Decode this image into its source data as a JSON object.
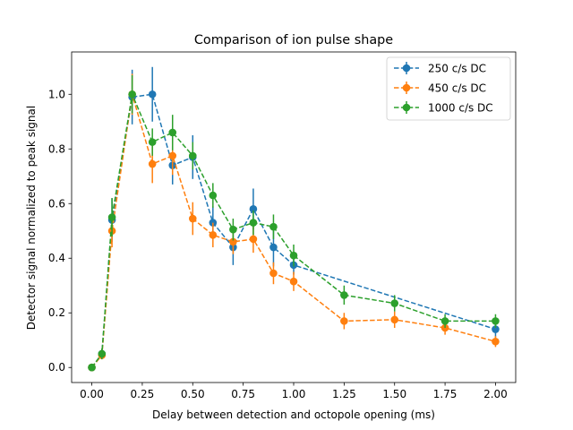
{
  "chart_data": {
    "type": "line",
    "title": "Comparison of ion pulse shape",
    "xlabel": "Delay between detection and octopole opening (ms)",
    "ylabel": "Detector signal normalized to peak signal",
    "xlim": [
      -0.1,
      2.1
    ],
    "ylim": [
      -0.055,
      1.155
    ],
    "xticks": [
      0.0,
      0.25,
      0.5,
      0.75,
      1.0,
      1.25,
      1.5,
      1.75,
      2.0
    ],
    "xtick_labels": [
      "0.00",
      "0.25",
      "0.50",
      "0.75",
      "1.00",
      "1.25",
      "1.50",
      "1.75",
      "2.00"
    ],
    "yticks": [
      0.0,
      0.2,
      0.4,
      0.6,
      0.8,
      1.0
    ],
    "ytick_labels": [
      "0.0",
      "0.2",
      "0.4",
      "0.6",
      "0.8",
      "1.0"
    ],
    "grid": false,
    "legend_position": "top-right",
    "line_style": "dashed",
    "marker": "circle",
    "series": [
      {
        "name": "250 c/s DC",
        "color": "#1f77b4",
        "x": [
          0.0,
          0.05,
          0.1,
          0.2,
          0.3,
          0.4,
          0.5,
          0.6,
          0.7,
          0.8,
          0.9,
          1.0,
          2.0
        ],
        "y": [
          0.0,
          0.05,
          0.54,
          0.99,
          1.0,
          0.74,
          0.77,
          0.53,
          0.44,
          0.58,
          0.44,
          0.375,
          0.14
        ],
        "yerr": [
          0.0,
          0.015,
          0.08,
          0.1,
          0.1,
          0.07,
          0.08,
          0.06,
          0.065,
          0.075,
          0.07,
          0.035,
          0.03
        ]
      },
      {
        "name": "450 c/s DC",
        "color": "#ff7f0e",
        "x": [
          0.0,
          0.05,
          0.1,
          0.2,
          0.3,
          0.4,
          0.5,
          0.6,
          0.7,
          0.8,
          0.9,
          1.0,
          1.25,
          1.5,
          1.75,
          2.0
        ],
        "y": [
          0.0,
          0.045,
          0.5,
          1.0,
          0.745,
          0.775,
          0.545,
          0.485,
          0.46,
          0.47,
          0.345,
          0.315,
          0.17,
          0.175,
          0.145,
          0.095
        ],
        "yerr": [
          0.0,
          0.015,
          0.06,
          0.075,
          0.07,
          0.07,
          0.06,
          0.045,
          0.045,
          0.05,
          0.04,
          0.035,
          0.03,
          0.03,
          0.025,
          0.02
        ]
      },
      {
        "name": "1000 c/s DC",
        "color": "#2ca02c",
        "x": [
          0.0,
          0.05,
          0.1,
          0.2,
          0.3,
          0.4,
          0.5,
          0.6,
          0.7,
          0.8,
          0.9,
          1.0,
          1.25,
          1.5,
          1.75,
          2.0
        ],
        "y": [
          0.0,
          0.05,
          0.55,
          1.0,
          0.825,
          0.86,
          0.775,
          0.63,
          0.505,
          0.53,
          0.515,
          0.41,
          0.265,
          0.235,
          0.17,
          0.17
        ],
        "yerr": [
          0.0,
          0.02,
          0.07,
          0.07,
          0.05,
          0.065,
          0.05,
          0.045,
          0.04,
          0.045,
          0.045,
          0.04,
          0.035,
          0.03,
          0.025,
          0.025
        ]
      }
    ]
  }
}
